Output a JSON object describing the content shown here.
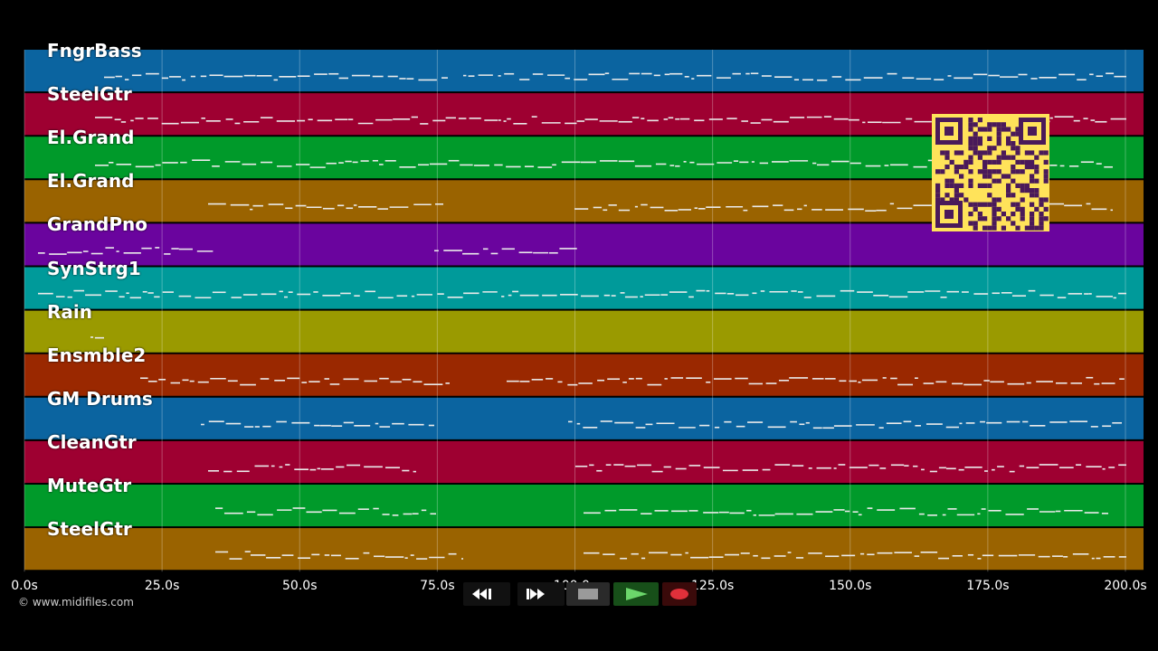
{
  "tracks": [
    {
      "name": "FngrBass",
      "color": "#0b64a0"
    },
    {
      "name": "SteelGtr",
      "color": "#9e0031"
    },
    {
      "name": "El.Grand",
      "color": "#009a2a"
    },
    {
      "name": "El.Grand",
      "color": "#9a6300"
    },
    {
      "name": "GrandPno",
      "color": "#6a049e"
    },
    {
      "name": "SynStrg1",
      "color": "#009a9a"
    },
    {
      "name": "Rain",
      "color": "#9a9a00"
    },
    {
      "name": "Ensmble2",
      "color": "#9a2800"
    },
    {
      "name": "GM Drums",
      "color": "#0b64a0"
    },
    {
      "name": "CleanGtr",
      "color": "#9e0031"
    },
    {
      "name": "MuteGtr",
      "color": "#009a2a"
    },
    {
      "name": "SteelGtr",
      "color": "#9a6300"
    }
  ],
  "timeline": {
    "ticks": [
      "0.0s",
      "25.0s",
      "50.0s",
      "75.0s",
      "100.0s",
      "125.0s",
      "150.0s",
      "175.0s",
      "200.0s"
    ],
    "max_seconds": 200
  },
  "footer": {
    "copyright": "© www.midifiles.com"
  },
  "transport": [
    {
      "name": "rewind-button",
      "icon": "rewind-icon"
    },
    {
      "name": "fast-forward-button",
      "icon": "fast-forward-icon"
    },
    {
      "name": "stop-button",
      "icon": "stop-icon"
    },
    {
      "name": "play-button",
      "icon": "play-icon"
    },
    {
      "name": "record-button",
      "icon": "record-icon"
    }
  ],
  "overlay": {
    "icon": "qr-code-icon"
  }
}
